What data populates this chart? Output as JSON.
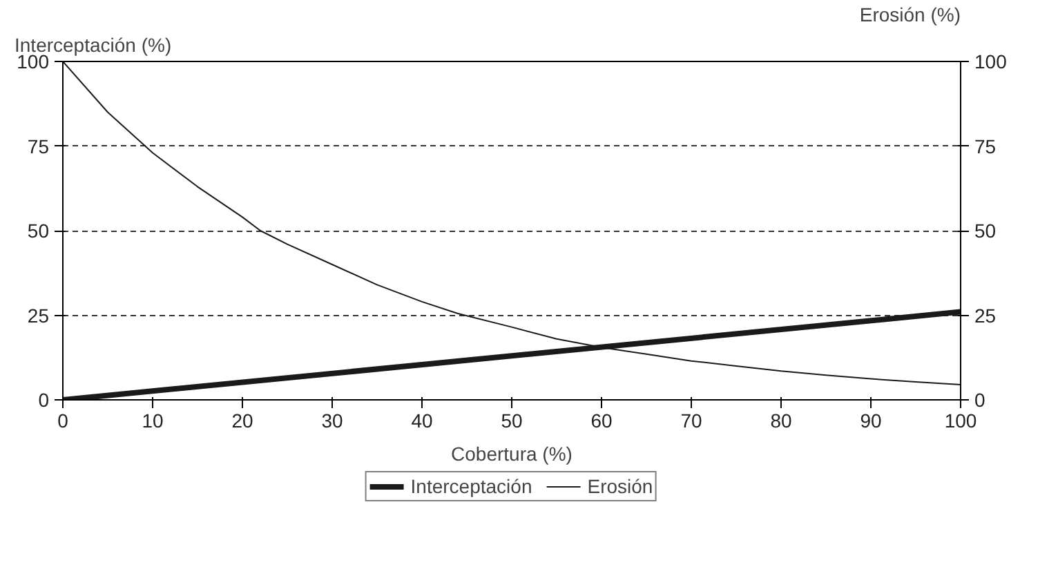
{
  "chart_data": {
    "type": "line",
    "xlabel": "Cobertura (%)",
    "ylabel": "Interceptación (%)",
    "y2label": "Erosión (%)",
    "x": [
      0,
      5,
      10,
      15,
      20,
      22,
      25,
      30,
      35,
      40,
      44,
      50,
      55,
      60,
      65,
      70,
      75,
      80,
      85,
      90,
      95,
      100
    ],
    "series": [
      {
        "name": "Interceptación",
        "color": "#1a1a1a",
        "x": [
          0,
          100
        ],
        "values": [
          0,
          26
        ]
      },
      {
        "name": "Erosión",
        "color": "#1a1a1a",
        "values": [
          100,
          85,
          73,
          63,
          54,
          50,
          46,
          40,
          34,
          29,
          25.5,
          21.5,
          18,
          15.5,
          13.5,
          11.5,
          10,
          8.5,
          7.3,
          6.2,
          5.3,
          4.5
        ]
      }
    ],
    "xlim": [
      0,
      100
    ],
    "xticks": [
      0,
      10,
      20,
      30,
      40,
      50,
      60,
      70,
      80,
      90,
      100
    ],
    "ylim": [
      0,
      100
    ],
    "yticks": [
      0,
      25,
      50,
      75,
      100
    ],
    "y2lim": [
      0,
      100
    ],
    "y2ticks": [
      0,
      25,
      50,
      75,
      100
    ],
    "grid": "y",
    "legend": "bottom",
    "marker": "none",
    "line_style": "solid"
  }
}
